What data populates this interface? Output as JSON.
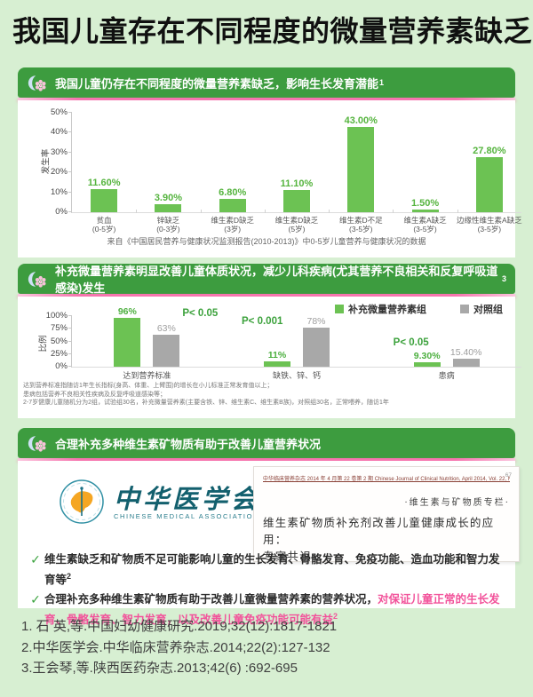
{
  "page_title": "我国儿童存在不同程度的微量营养素缺乏",
  "colors": {
    "accent_green": "#3d9c3f",
    "bar_green": "#6cc253",
    "bar_gray": "#a8a8a8",
    "pink_accent": "#f675ae",
    "pink_text": "#f2549b",
    "teal": "#13606e"
  },
  "sections": {
    "s1": {
      "header": "我国儿童仍存在不同程度的微量营养素缺乏，影响生长发育潜能",
      "sup": "1"
    },
    "s2": {
      "header": "补充微量营养素明显改善儿童体质状况，减少儿科疾病(尤其营养不良相关和反复呼吸道感染)发生",
      "sup": "3"
    },
    "s3": {
      "header": "合理补充多种维生素矿物质有助于改善儿童营养状况",
      "sup": ""
    }
  },
  "chart_data": [
    {
      "type": "bar",
      "title": "",
      "xlabel": "",
      "ylabel": "发生率",
      "ylim": [
        0,
        50
      ],
      "yticks": [
        "0%",
        "10%",
        "20%",
        "30%",
        "40%",
        "50%"
      ],
      "categories": [
        {
          "label": "贫血",
          "sub": "(0-5岁)"
        },
        {
          "label": "锌缺乏",
          "sub": "(0-3岁)"
        },
        {
          "label": "维生素D缺乏",
          "sub": "(3岁)"
        },
        {
          "label": "维生素D缺乏",
          "sub": "(5岁)"
        },
        {
          "label": "维生素D不足",
          "sub": "(3-5岁)"
        },
        {
          "label": "维生素A缺乏",
          "sub": "(3-5岁)"
        },
        {
          "label": "边缘性维生素A缺乏",
          "sub": "(3-5岁)"
        }
      ],
      "values": [
        11.6,
        3.9,
        6.8,
        11.1,
        43.0,
        1.5,
        27.8
      ],
      "value_labels": [
        "11.60%",
        "3.90%",
        "6.80%",
        "11.10%",
        "43.00%",
        "1.50%",
        "27.80%"
      ],
      "source": "来自《中国居民营养与健康状况监测报告(2010-2013)》中0-5岁儿童营养与健康状况的数据"
    },
    {
      "type": "bar",
      "title": "",
      "xlabel": "",
      "ylabel": "比例",
      "ylim": [
        0,
        100
      ],
      "yticks": [
        "0%",
        "25%",
        "50%",
        "75%",
        "100%"
      ],
      "legend": [
        "补充微量营养素组",
        "对照组"
      ],
      "categories": [
        "达到营养标准",
        "缺铁、锌、钙",
        "患病"
      ],
      "series": [
        {
          "name": "补充微量营养素组",
          "values": [
            96,
            11,
            9.3
          ],
          "labels": [
            "96%",
            "11%",
            "9.30%"
          ]
        },
        {
          "name": "对照组",
          "values": [
            63,
            78,
            15.4
          ],
          "labels": [
            "63%",
            "78%",
            "15.40%"
          ]
        }
      ],
      "p_values": [
        "P< 0.05",
        "P< 0.001",
        "P< 0.05"
      ],
      "footnotes": [
        "达到营养标准指随访1年生长指标(身高、体重、上臂围)的增长在小儿标准正常发育值以上；",
        "患病包括营养不良相关性疾病及反复呼吸道感染等；",
        "2-7岁健康儿童随机分为2组，试验组30名，补充微量营养素(主要含铁、锌、维生素C、维生素B族)，对照组30名，正常喂养，随访1年"
      ]
    }
  ],
  "cma": {
    "name_cn": "中华医学会",
    "name_en": "CHINESE MEDICAL ASSOCIATION"
  },
  "doc": {
    "journal_line": "中华临床营养杂志 2014 年 4 月第 22 卷第 2 期  Chinese Journal of Clinical Nutrition, April 2014, Vol. 22, No.2",
    "page_no": "67",
    "column": "·维生素与矿物质专栏·",
    "title_line1": "维生素矿物质补充剂改善儿童健康成长的应用：",
    "title_line2": "专家共识"
  },
  "bullets": [
    {
      "text": "维生素缺乏和矿物质不足可能影响儿童的生长发育、骨骼发育、免疫功能、造血功能和智力发育等",
      "pink": "",
      "sup": "2"
    },
    {
      "text": "合理补充多种维生素矿物质有助于改善儿童微量营养素的营养状况，",
      "pink": "对保证儿童正常的生长发育、骨骼发育、智力发育，以及改善儿童免疫功能可能有益",
      "sup": "2"
    }
  ],
  "references": [
    "1. 石 英,等.中国妇幼健康研究.2019;32(12):1817-1821",
    "2.中华医学会.中华临床营养杂志.2014;22(2):127-132",
    "3.王会琴,等.陕西医药杂志.2013;42(6) :692-695"
  ]
}
